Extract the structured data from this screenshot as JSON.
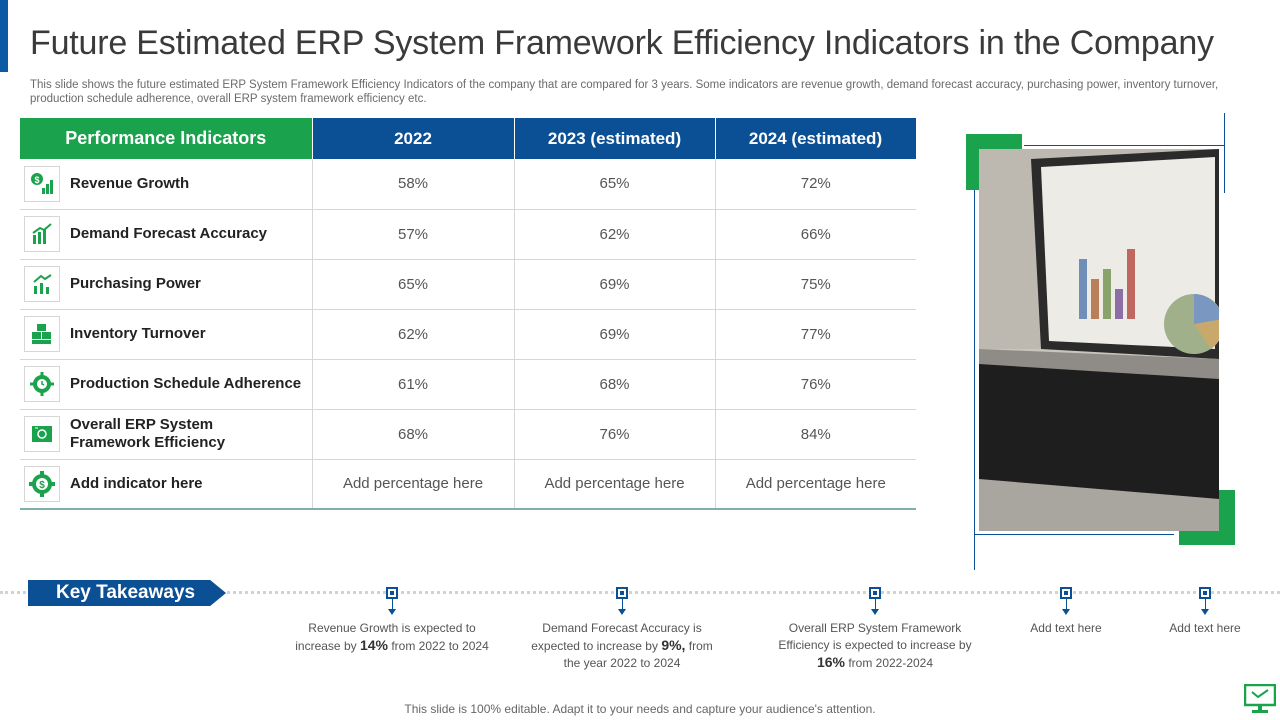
{
  "title": "Future Estimated ERP System Framework Efficiency Indicators in the Company",
  "subtitle": "This slide shows the future estimated ERP System Framework Efficiency Indicators of the company that are compared for 3 years. Some indicators are revenue growth, demand forecast accuracy, purchasing power, inventory turnover,  production schedule adherence, overall ERP system framework efficiency etc.",
  "table": {
    "headers": [
      "Performance Indicators",
      "2022",
      "2023 (estimated)",
      "2024 (estimated)"
    ],
    "rows": [
      {
        "icon": "dollar-chart-icon",
        "label": "Revenue Growth",
        "v1": "58%",
        "v2": "65%",
        "v3": "72%"
      },
      {
        "icon": "bar-chart-icon",
        "label": "Demand Forecast Accuracy",
        "v1": "57%",
        "v2": "62%",
        "v3": "66%"
      },
      {
        "icon": "growth-arrow-icon",
        "label": "Purchasing Power",
        "v1": "65%",
        "v2": "69%",
        "v3": "75%"
      },
      {
        "icon": "boxes-icon",
        "label": "Inventory Turnover",
        "v1": "62%",
        "v2": "69%",
        "v3": "77%"
      },
      {
        "icon": "gear-clock-icon",
        "label": "Production Schedule Adherence",
        "v1": "61%",
        "v2": "68%",
        "v3": "76%"
      },
      {
        "icon": "efficiency-icon",
        "label": "Overall ERP System Framework Efficiency",
        "v1": "68%",
        "v2": "76%",
        "v3": "84%"
      },
      {
        "icon": "gear-dollar-icon",
        "label": "Add  indicator here",
        "v1": "Add percentage here",
        "v2": "Add percentage here",
        "v3": "Add percentage here"
      }
    ]
  },
  "key_takeaways": {
    "label": "Key Takeaways",
    "items": [
      {
        "pre": "Revenue Growth is expected to increase by",
        "bold": "14%",
        "post": "from 2022 to 2024"
      },
      {
        "pre": "Demand Forecast Accuracy is expected to increase by",
        "bold": "9%,",
        "post": "from the year 2022 to 2024"
      },
      {
        "pre": "Overall ERP System Framework Efficiency is expected to increase by",
        "bold": "16%",
        "post": "from 2022-2024"
      },
      {
        "pre": "Add text here",
        "bold": "",
        "post": ""
      },
      {
        "pre": "Add text here",
        "bold": "",
        "post": ""
      }
    ]
  },
  "footer": "This slide is 100% editable. Adapt it to your needs and capture your audience's attention.",
  "colors": {
    "green": "#1aa24c",
    "blue": "#0b4f95"
  }
}
